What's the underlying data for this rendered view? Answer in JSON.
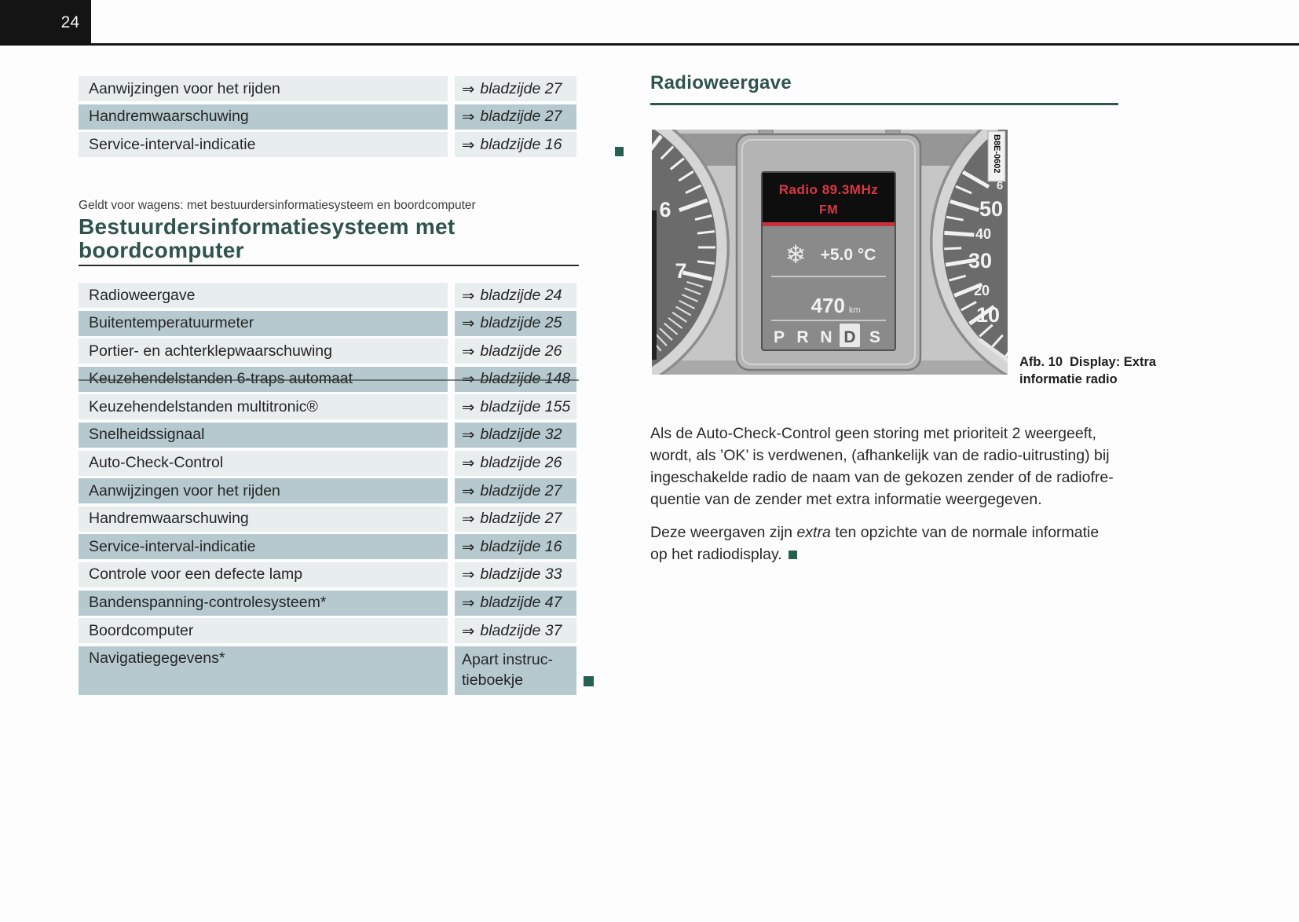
{
  "page": {
    "number": "24"
  },
  "colors": {
    "accent_teal": "#2e544b",
    "row_light": "#e8edee",
    "row_dark": "#b6c9ce",
    "display_red": "#d93844",
    "marker_teal": "#26604f"
  },
  "left_column": {
    "table1": {
      "rows": [
        {
          "label": "Aanwijzingen voor het rijden",
          "arrow": "⇒",
          "page": "bladzijde 27"
        },
        {
          "label": "Handremwaarschuwing",
          "arrow": "⇒",
          "page": "bladzijde 27"
        },
        {
          "label": "Service-interval-indicatie",
          "arrow": "⇒",
          "page": "bladzijde 16"
        }
      ]
    },
    "applies_note": "Geldt voor wagens: met bestuurdersinformatiesysteem en boordcomputer",
    "section_title_line1": "Bestuurdersinformatiesysteem met",
    "section_title_line2": "boordcomputer",
    "table2": {
      "rows": [
        {
          "label": "Radioweergave",
          "arrow": "⇒",
          "page": "bladzijde 24"
        },
        {
          "label": "Buitentemperatuurmeter",
          "arrow": "⇒",
          "page": "bladzijde 25"
        },
        {
          "label": "Portier- en achterklepwaarschuwing",
          "arrow": "⇒",
          "page": "bladzijde 26"
        },
        {
          "label": "Keuzehendelstanden 6-traps automaat",
          "arrow": "⇒",
          "page": "bladzijde 148"
        },
        {
          "label": "Keuzehendelstanden multitronic®",
          "arrow": "⇒",
          "page": "bladzijde 155"
        },
        {
          "label": "Snelheidssignaal",
          "arrow": "⇒",
          "page": "bladzijde 32"
        },
        {
          "label": "Auto-Check-Control",
          "arrow": "⇒",
          "page": "bladzijde 26"
        },
        {
          "label": "Aanwijzingen voor het rijden",
          "arrow": "⇒",
          "page": "bladzijde 27"
        },
        {
          "label": "Handremwaarschuwing",
          "arrow": "⇒",
          "page": "bladzijde 27"
        },
        {
          "label": "Service-interval-indicatie",
          "arrow": "⇒",
          "page": "bladzijde 16"
        },
        {
          "label": "Controle voor een defecte lamp",
          "arrow": "⇒",
          "page": "bladzijde 33"
        },
        {
          "label": "Bandenspanning-controlesysteem*",
          "arrow": "⇒",
          "page": "bladzijde 47"
        },
        {
          "label": "Boordcomputer",
          "arrow": "⇒",
          "page": "bladzijde 37"
        },
        {
          "label": "Navigatiegegevens*",
          "arrow": "",
          "page": "Apart instruc-\ntieboekje"
        }
      ]
    }
  },
  "right_column": {
    "section_title": "Radioweergave",
    "figure": {
      "code": "B8E-0602",
      "caption_label": "Afb. 10",
      "caption_text": "Display: Extra informatie radio",
      "display": {
        "radio_station": "Radio 89.3MHz",
        "radio_band": "FM",
        "snowflake_icon": "❄",
        "temperature": "+5.0 °C",
        "range_value": "470",
        "range_unit": "km",
        "gears": [
          "P",
          "R",
          "N",
          "D",
          "S"
        ],
        "selected_gear": "D"
      },
      "left_gauge_numbers": [
        "6",
        "7"
      ],
      "right_gauge_numbers": [
        "50",
        "40",
        "30",
        "20",
        "10"
      ],
      "right_gauge_partial_number": "6"
    },
    "paragraph1_lines": [
      "Als de Auto-Check-Control geen storing met prioriteit 2 weergeeft,",
      "wordt, als ’OK’ is verdwenen, (afhankelijk van de radio-uitrusting) bij",
      "ingeschakelde radio de naam van de gekozen zender of de radiofre-",
      "quentie van de zender met extra informatie weergegeven."
    ],
    "paragraph2": {
      "part1": "Deze weergaven zijn ",
      "italic": "extra",
      "part2": " ten opzichte van de normale informatie",
      "line2": "op het radiodisplay."
    }
  }
}
